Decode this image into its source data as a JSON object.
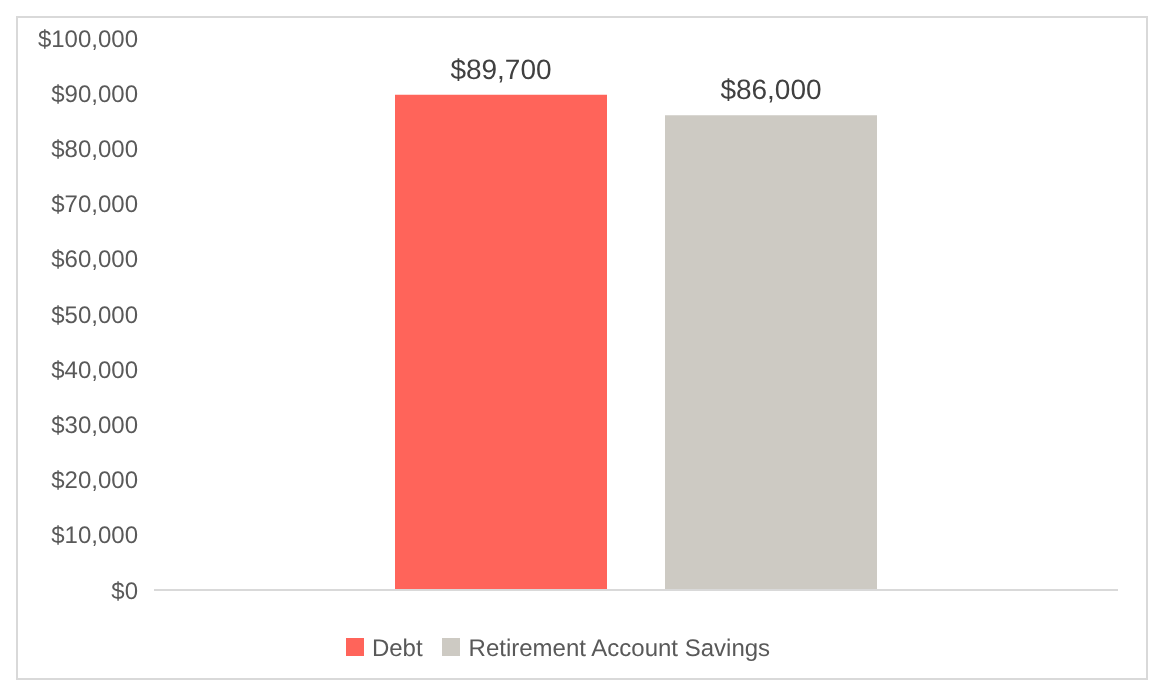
{
  "chart_data": {
    "type": "bar",
    "categories": [
      null
    ],
    "series": [
      {
        "name": "Debt",
        "color": "#ff645a",
        "values": [
          89700
        ],
        "value_labels": [
          "$89,700"
        ]
      },
      {
        "name": "Retirement Account Savings",
        "color": "#cdcac3",
        "values": [
          86000
        ],
        "value_labels": [
          "$86,000"
        ]
      }
    ],
    "ylim": [
      0,
      100000
    ],
    "yticks": [
      {
        "value": 0,
        "label": "$0"
      },
      {
        "value": 10000,
        "label": "$10,000"
      },
      {
        "value": 20000,
        "label": "$20,000"
      },
      {
        "value": 30000,
        "label": "$30,000"
      },
      {
        "value": 40000,
        "label": "$40,000"
      },
      {
        "value": 50000,
        "label": "$50,000"
      },
      {
        "value": 60000,
        "label": "$60,000"
      },
      {
        "value": 70000,
        "label": "$70,000"
      },
      {
        "value": 80000,
        "label": "$80,000"
      },
      {
        "value": 90000,
        "label": "$90,000"
      },
      {
        "value": 100000,
        "label": "$100,000"
      }
    ],
    "grid": false,
    "legend": "bottom"
  }
}
